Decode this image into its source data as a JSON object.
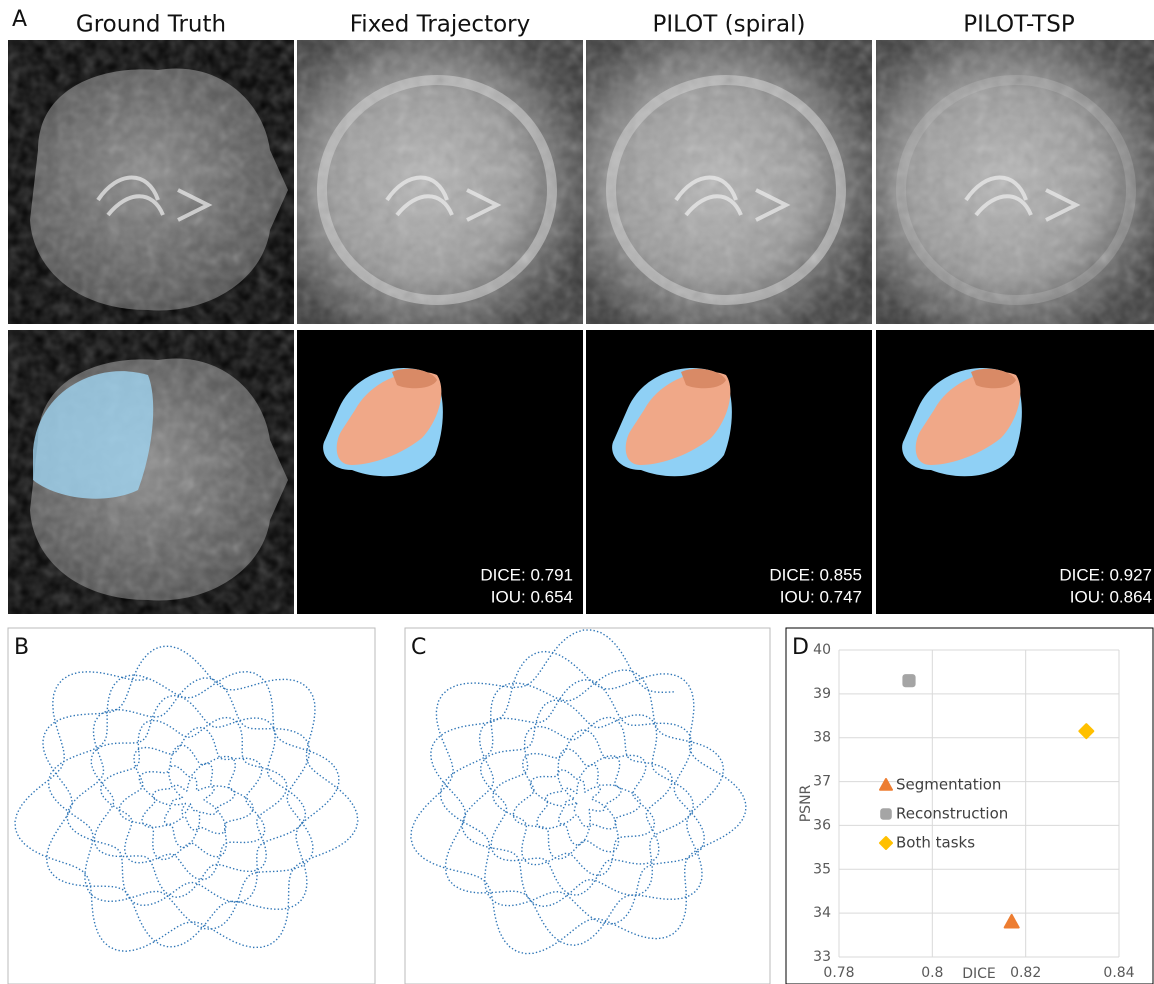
{
  "panels": {
    "a": "A",
    "b": "B",
    "c": "C",
    "d": "D"
  },
  "columns": [
    "Ground Truth",
    "Fixed Trajectory",
    "PILOT (spiral)",
    "PILOT-TSP"
  ],
  "metrics": [
    {
      "dice": "DICE: 0.791",
      "iou": "IOU: 0.654"
    },
    {
      "dice": "DICE: 0.855",
      "iou": "IOU: 0.747"
    },
    {
      "dice": "DICE: 0.927",
      "iou": "IOU: 0.864"
    }
  ],
  "chart_data": {
    "type": "scatter",
    "xlabel": "DICE",
    "ylabel": "PSNR",
    "xlim": [
      0.78,
      0.84
    ],
    "xticks": [
      0.78,
      0.8,
      0.82,
      0.84
    ],
    "ylim": [
      33,
      40
    ],
    "yticks": [
      33,
      34,
      35,
      36,
      37,
      38,
      39,
      40
    ],
    "grid": true,
    "legend": "left",
    "series": [
      {
        "name": "Segmentation",
        "color": "#ed7d31",
        "marker": "triangle",
        "x": [
          0.817
        ],
        "values": [
          33.8
        ]
      },
      {
        "name": "Reconstruction",
        "color": "#a5a5a5",
        "marker": "square",
        "x": [
          0.795
        ],
        "values": [
          39.3
        ]
      },
      {
        "name": "Both tasks",
        "color": "#ffc000",
        "marker": "diamond",
        "x": [
          0.833
        ],
        "values": [
          38.15
        ]
      }
    ]
  }
}
